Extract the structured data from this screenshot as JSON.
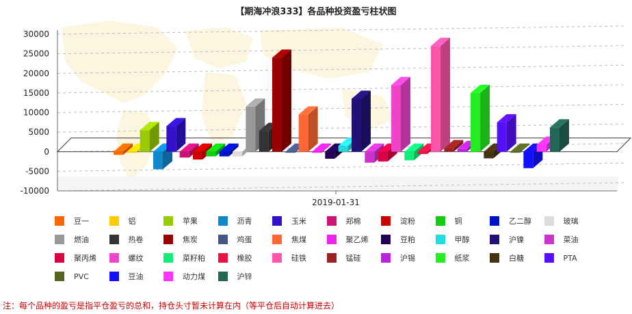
{
  "chart_data": {
    "type": "bar",
    "title": "【期海冲浪333】各品种投资盈亏柱状图",
    "xlabel": "",
    "ylabel": "",
    "categories": [
      "2019-01-31"
    ],
    "ylim": [
      -10000,
      30000
    ],
    "y_ticks": [
      -10000,
      -5000,
      0,
      5000,
      10000,
      15000,
      20000,
      25000,
      30000
    ],
    "grid": true,
    "legend_position": "bottom",
    "series": [
      {
        "name": "豆一",
        "color": "#ff6600",
        "values": [
          -800
        ]
      },
      {
        "name": "铝",
        "color": "#ffcc00",
        "values": [
          0
        ]
      },
      {
        "name": "苹果",
        "color": "#99cc00",
        "values": [
          5500
        ]
      },
      {
        "name": "沥青",
        "color": "#1188cc",
        "values": [
          -4500
        ]
      },
      {
        "name": "玉米",
        "color": "#3311cc",
        "values": [
          6500
        ]
      },
      {
        "name": "郑棉",
        "color": "#cc1177",
        "values": [
          -1500
        ]
      },
      {
        "name": "淀粉",
        "color": "#cc0000",
        "values": [
          -2000
        ]
      },
      {
        "name": "铜",
        "color": "#11cc11",
        "values": [
          -1200
        ]
      },
      {
        "name": "乙二醇",
        "color": "#0011cc",
        "values": [
          -1200
        ]
      },
      {
        "name": "玻璃",
        "color": "#dddddd",
        "values": [
          -1200
        ]
      },
      {
        "name": "燃油",
        "color": "#999999",
        "values": [
          11500
        ]
      },
      {
        "name": "热卷",
        "color": "#333333",
        "values": [
          5300
        ]
      },
      {
        "name": "焦炭",
        "color": "#990000",
        "values": [
          24000
        ]
      },
      {
        "name": "鸡蛋",
        "color": "#445588",
        "values": [
          0
        ]
      },
      {
        "name": "焦煤",
        "color": "#ff6633",
        "values": [
          9500
        ]
      },
      {
        "name": "聚乙烯",
        "color": "#ee22ee",
        "values": [
          0
        ]
      },
      {
        "name": "豆粕",
        "color": "#220055",
        "values": [
          -1800
        ]
      },
      {
        "name": "甲醇",
        "color": "#22dddd",
        "values": [
          1500
        ]
      },
      {
        "name": "沪镍",
        "color": "#221177",
        "values": [
          13500
        ]
      },
      {
        "name": "菜油",
        "color": "#cc33cc",
        "values": [
          -2800
        ]
      },
      {
        "name": "聚丙烯",
        "color": "#dd0044",
        "values": [
          -2500
        ]
      },
      {
        "name": "螺纹",
        "color": "#ee44cc",
        "values": [
          17000
        ]
      },
      {
        "name": "菜籽粕",
        "color": "#11ee77",
        "values": [
          -2200
        ]
      },
      {
        "name": "橡胶",
        "color": "#ee1144",
        "values": [
          -600
        ]
      },
      {
        "name": "硅铁",
        "color": "#ff55aa",
        "values": [
          27000
        ]
      },
      {
        "name": "锰硅",
        "color": "#992222",
        "values": [
          900
        ]
      },
      {
        "name": "沪锡",
        "color": "#bb22dd",
        "values": [
          700
        ]
      },
      {
        "name": "纸浆",
        "color": "#22ee22",
        "values": [
          15000
        ]
      },
      {
        "name": "白糖",
        "color": "#443311",
        "values": [
          -1700
        ]
      },
      {
        "name": "PTA",
        "color": "#5511ff",
        "values": [
          7500
        ]
      },
      {
        "name": "PVC",
        "color": "#556622",
        "values": [
          0
        ]
      },
      {
        "name": "豆油",
        "color": "#1111ff",
        "values": [
          -4200
        ]
      },
      {
        "name": "动力煤",
        "color": "#ff33ff",
        "values": [
          1800
        ]
      },
      {
        "name": "沪锌",
        "color": "#226655",
        "values": [
          6200
        ]
      }
    ]
  },
  "footnote": "注：每个品种的盈亏是指平仓盈亏的总和，持仓头寸暂未计算在内（等平仓后自动计算进去）"
}
